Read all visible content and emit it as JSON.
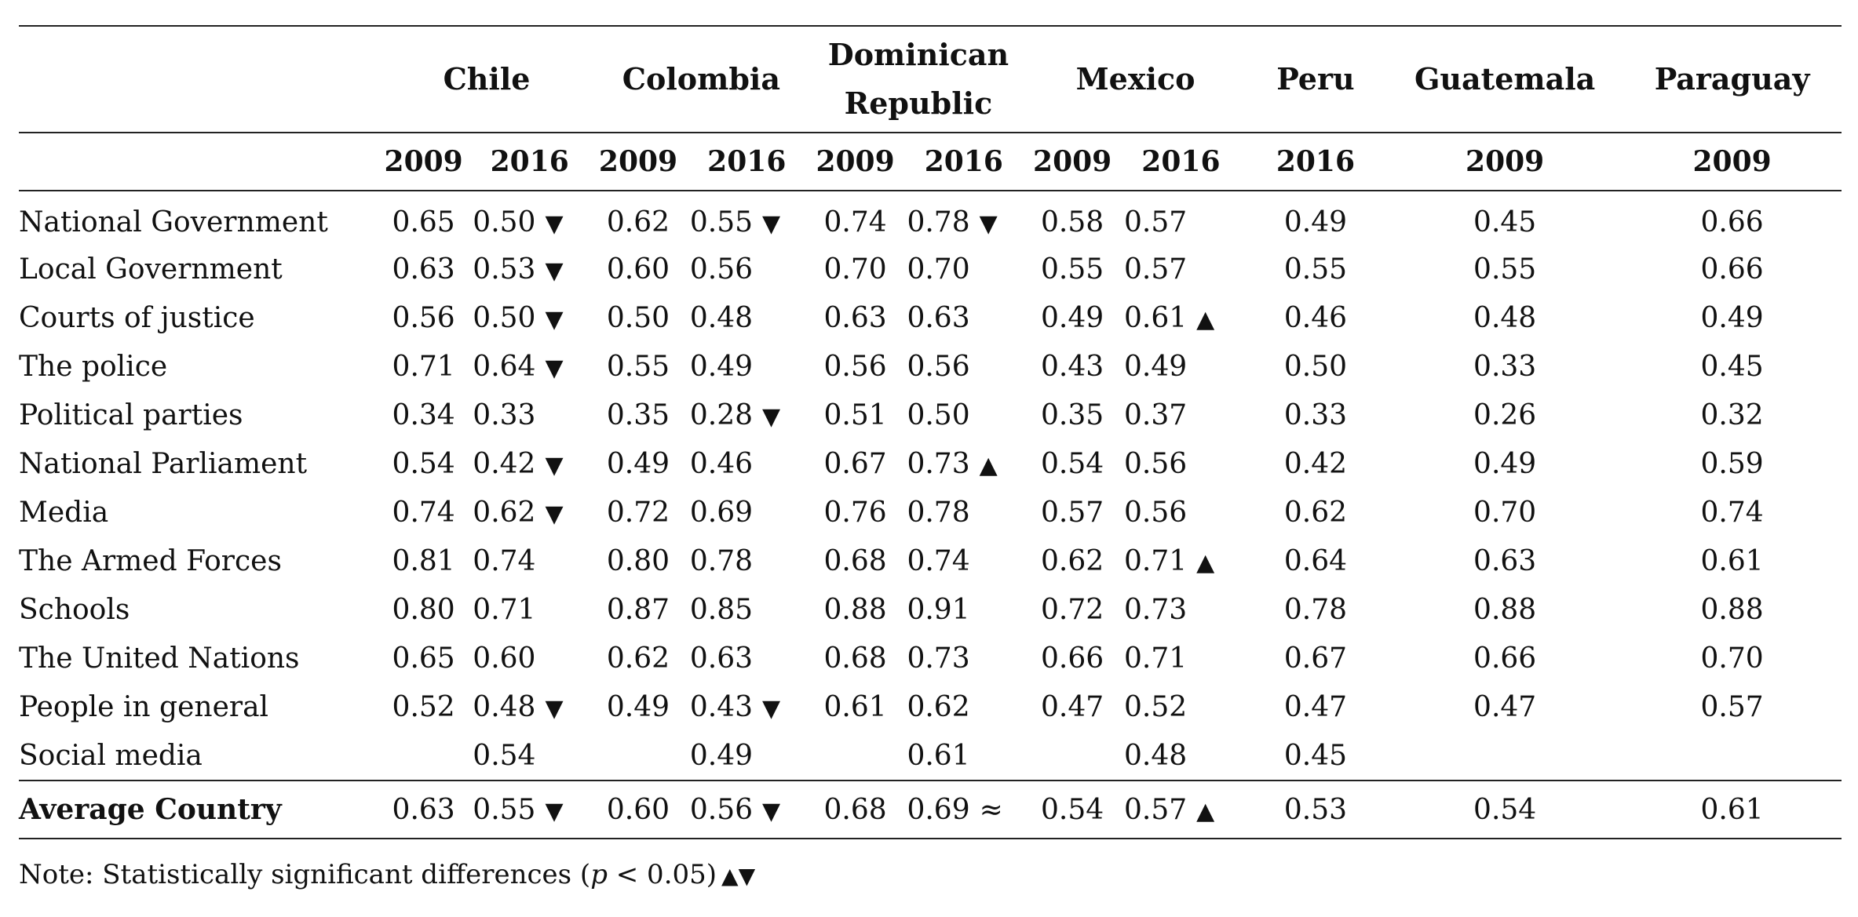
{
  "table": {
    "countries": [
      {
        "name": "Chile",
        "years": [
          "2009",
          "2016"
        ]
      },
      {
        "name": "Colombia",
        "years": [
          "2009",
          "2016"
        ]
      },
      {
        "name": "Dominican Republic",
        "name_lines": [
          "Dominican",
          "Republic"
        ],
        "years": [
          "2009",
          "2016"
        ]
      },
      {
        "name": "Mexico",
        "years": [
          "2009",
          "2016"
        ]
      },
      {
        "name": "Peru",
        "years": [
          "2016"
        ]
      },
      {
        "name": "Guatemala",
        "years": [
          "2009"
        ]
      },
      {
        "name": "Paraguay",
        "years": [
          "2009"
        ]
      }
    ],
    "rows": [
      {
        "label": "National Government",
        "cells": [
          [
            "0.65",
            ""
          ],
          [
            "0.50",
            "▼"
          ],
          [
            "0.62",
            ""
          ],
          [
            "0.55",
            "▼"
          ],
          [
            "0.74",
            ""
          ],
          [
            "0.78",
            "▼"
          ],
          [
            "0.58",
            ""
          ],
          [
            "0.57",
            ""
          ],
          [
            "0.49",
            ""
          ],
          [
            "0.45",
            ""
          ],
          [
            "0.66",
            ""
          ]
        ]
      },
      {
        "label": "Local Government",
        "cells": [
          [
            "0.63",
            ""
          ],
          [
            "0.53",
            "▼"
          ],
          [
            "0.60",
            ""
          ],
          [
            "0.56",
            ""
          ],
          [
            "0.70",
            ""
          ],
          [
            "0.70",
            ""
          ],
          [
            "0.55",
            ""
          ],
          [
            "0.57",
            ""
          ],
          [
            "0.55",
            ""
          ],
          [
            "0.55",
            ""
          ],
          [
            "0.66",
            ""
          ]
        ]
      },
      {
        "label": "Courts of justice",
        "cells": [
          [
            "0.56",
            ""
          ],
          [
            "0.50",
            "▼"
          ],
          [
            "0.50",
            ""
          ],
          [
            "0.48",
            ""
          ],
          [
            "0.63",
            ""
          ],
          [
            "0.63",
            ""
          ],
          [
            "0.49",
            ""
          ],
          [
            "0.61",
            "▲"
          ],
          [
            "0.46",
            ""
          ],
          [
            "0.48",
            ""
          ],
          [
            "0.49",
            ""
          ]
        ]
      },
      {
        "label": "The police",
        "cells": [
          [
            "0.71",
            ""
          ],
          [
            "0.64",
            "▼"
          ],
          [
            "0.55",
            ""
          ],
          [
            "0.49",
            ""
          ],
          [
            "0.56",
            ""
          ],
          [
            "0.56",
            ""
          ],
          [
            "0.43",
            ""
          ],
          [
            "0.49",
            ""
          ],
          [
            "0.50",
            ""
          ],
          [
            "0.33",
            ""
          ],
          [
            "0.45",
            ""
          ]
        ]
      },
      {
        "label": "Political parties",
        "cells": [
          [
            "0.34",
            ""
          ],
          [
            "0.33",
            ""
          ],
          [
            "0.35",
            ""
          ],
          [
            "0.28",
            "▼"
          ],
          [
            "0.51",
            ""
          ],
          [
            "0.50",
            ""
          ],
          [
            "0.35",
            ""
          ],
          [
            "0.37",
            ""
          ],
          [
            "0.33",
            ""
          ],
          [
            "0.26",
            ""
          ],
          [
            "0.32",
            ""
          ]
        ]
      },
      {
        "label": "National Parliament",
        "cells": [
          [
            "0.54",
            ""
          ],
          [
            "0.42",
            "▼"
          ],
          [
            "0.49",
            ""
          ],
          [
            "0.46",
            ""
          ],
          [
            "0.67",
            ""
          ],
          [
            "0.73",
            "▲"
          ],
          [
            "0.54",
            ""
          ],
          [
            "0.56",
            ""
          ],
          [
            "0.42",
            ""
          ],
          [
            "0.49",
            ""
          ],
          [
            "0.59",
            ""
          ]
        ]
      },
      {
        "label": "Media",
        "cells": [
          [
            "0.74",
            ""
          ],
          [
            "0.62",
            "▼"
          ],
          [
            "0.72",
            ""
          ],
          [
            "0.69",
            ""
          ],
          [
            "0.76",
            ""
          ],
          [
            "0.78",
            ""
          ],
          [
            "0.57",
            ""
          ],
          [
            "0.56",
            ""
          ],
          [
            "0.62",
            ""
          ],
          [
            "0.70",
            ""
          ],
          [
            "0.74",
            ""
          ]
        ]
      },
      {
        "label": "The Armed Forces",
        "cells": [
          [
            "0.81",
            ""
          ],
          [
            "0.74",
            ""
          ],
          [
            "0.80",
            ""
          ],
          [
            "0.78",
            ""
          ],
          [
            "0.68",
            ""
          ],
          [
            "0.74",
            ""
          ],
          [
            "0.62",
            ""
          ],
          [
            "0.71",
            "▲"
          ],
          [
            "0.64",
            ""
          ],
          [
            "0.63",
            ""
          ],
          [
            "0.61",
            ""
          ]
        ]
      },
      {
        "label": "Schools",
        "cells": [
          [
            "0.80",
            ""
          ],
          [
            "0.71",
            ""
          ],
          [
            "0.87",
            ""
          ],
          [
            "0.85",
            ""
          ],
          [
            "0.88",
            ""
          ],
          [
            "0.91",
            ""
          ],
          [
            "0.72",
            ""
          ],
          [
            "0.73",
            ""
          ],
          [
            "0.78",
            ""
          ],
          [
            "0.88",
            ""
          ],
          [
            "0.88",
            ""
          ]
        ]
      },
      {
        "label": "The United Nations",
        "cells": [
          [
            "0.65",
            ""
          ],
          [
            "0.60",
            ""
          ],
          [
            "0.62",
            ""
          ],
          [
            "0.63",
            ""
          ],
          [
            "0.68",
            ""
          ],
          [
            "0.73",
            ""
          ],
          [
            "0.66",
            ""
          ],
          [
            "0.71",
            ""
          ],
          [
            "0.67",
            ""
          ],
          [
            "0.66",
            ""
          ],
          [
            "0.70",
            ""
          ]
        ]
      },
      {
        "label": "People in general",
        "cells": [
          [
            "0.52",
            ""
          ],
          [
            "0.48",
            "▼"
          ],
          [
            "0.49",
            ""
          ],
          [
            "0.43",
            "▼"
          ],
          [
            "0.61",
            ""
          ],
          [
            "0.62",
            ""
          ],
          [
            "0.47",
            ""
          ],
          [
            "0.52",
            ""
          ],
          [
            "0.47",
            ""
          ],
          [
            "0.47",
            ""
          ],
          [
            "0.57",
            ""
          ]
        ]
      },
      {
        "label": "Social media",
        "cells": [
          [
            "",
            ""
          ],
          [
            "0.54",
            ""
          ],
          [
            "",
            ""
          ],
          [
            "0.49",
            ""
          ],
          [
            "",
            ""
          ],
          [
            "0.61",
            ""
          ],
          [
            "",
            ""
          ],
          [
            "0.48",
            ""
          ],
          [
            "0.45",
            ""
          ],
          [
            "",
            ""
          ],
          [
            "",
            ""
          ]
        ]
      }
    ],
    "average": {
      "label": "Average Country",
      "cells": [
        [
          "0.63",
          ""
        ],
        [
          "0.55",
          "▼"
        ],
        [
          "0.60",
          ""
        ],
        [
          "0.56",
          "▼"
        ],
        [
          "0.68",
          ""
        ],
        [
          "0.69",
          "≈"
        ],
        [
          "0.54",
          ""
        ],
        [
          "0.57",
          "▲"
        ],
        [
          "0.53",
          ""
        ],
        [
          "0.54",
          ""
        ],
        [
          "0.61",
          ""
        ]
      ]
    }
  },
  "note": {
    "prefix": "Note: Statistically significant differences (",
    "p": "p",
    "cond": " < 0.05)",
    "marks": "▲▼"
  }
}
